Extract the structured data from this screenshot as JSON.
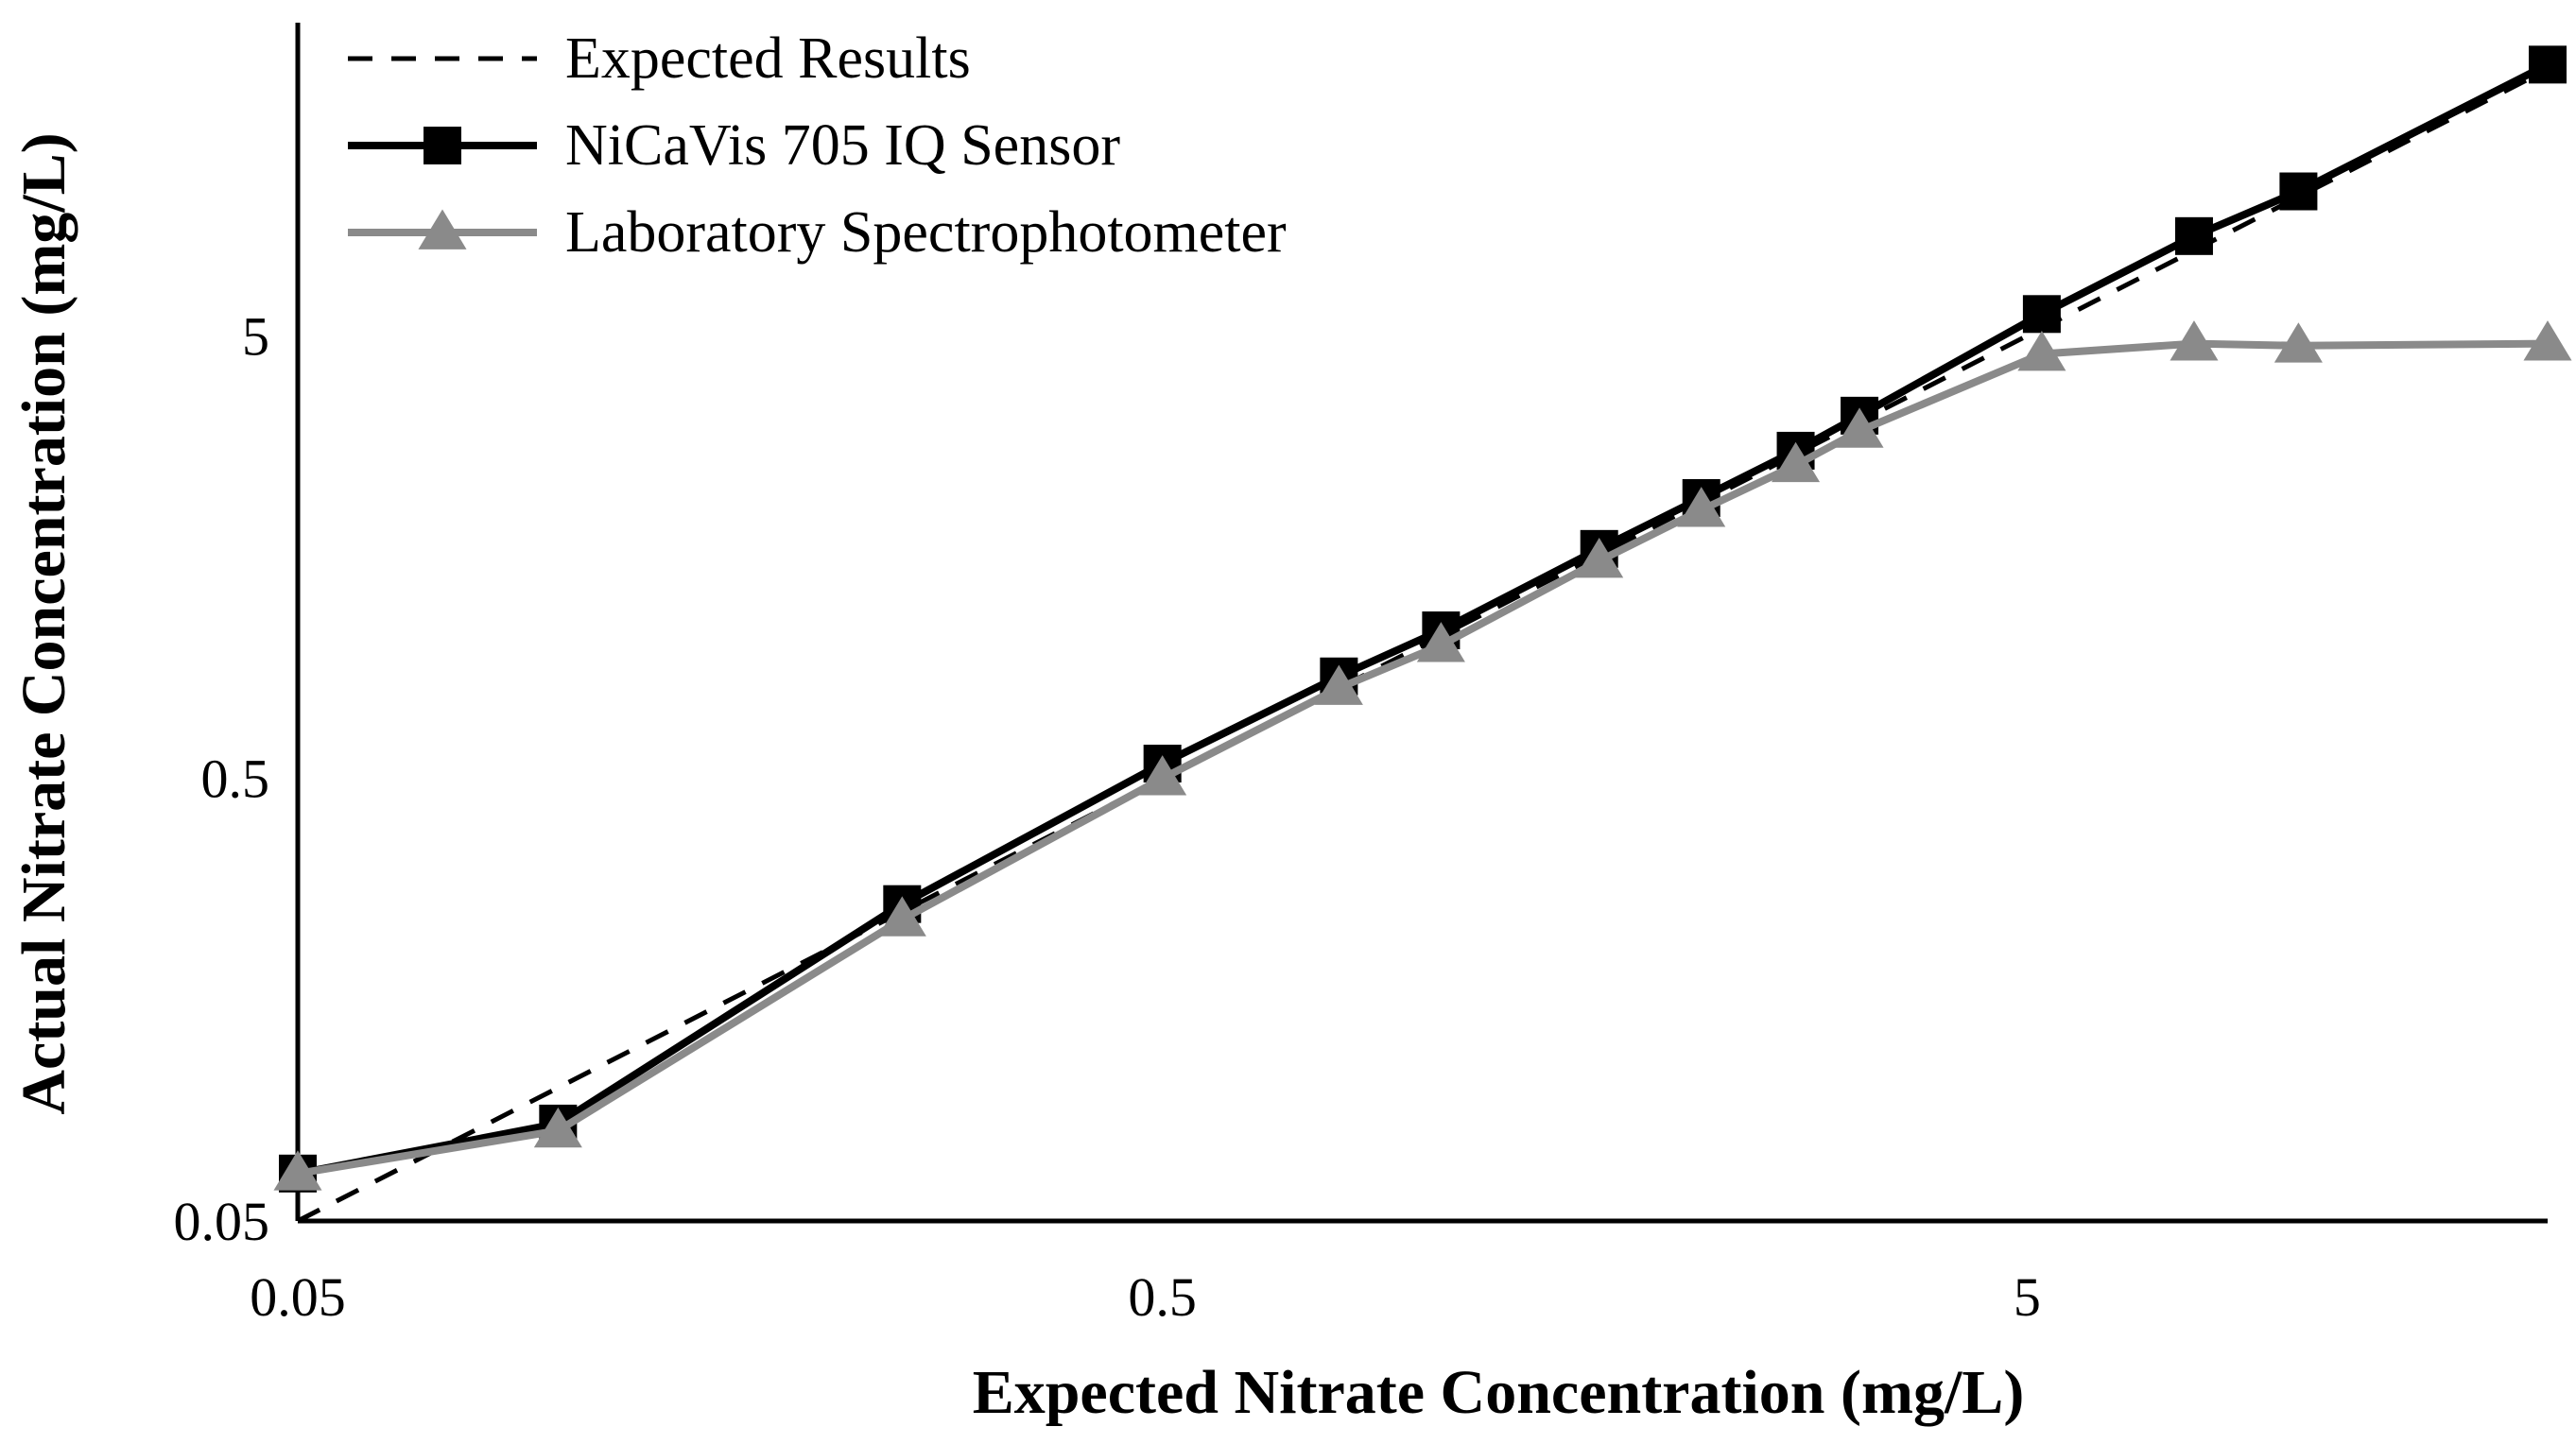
{
  "chart_data": {
    "type": "line",
    "xlabel": "Expected Nitrate Concentration (mg/L)",
    "ylabel": "Actual Nitrate Concentration (mg/L)",
    "xscale": "log",
    "yscale": "log",
    "xlim": [
      0.05,
      20
    ],
    "ylim": [
      0.05,
      25
    ],
    "xticks": [
      0.05,
      0.5,
      5
    ],
    "xtick_labels": [
      "0.05",
      "0.5",
      "5"
    ],
    "yticks": [
      0.05,
      0.5,
      5
    ],
    "ytick_labels": [
      "0.05",
      "0.5",
      "5"
    ],
    "grid": false,
    "legend_position": "top-left",
    "series": [
      {
        "name": "Expected Results",
        "style": "dashed",
        "color": "#000000",
        "marker": "none",
        "x": [
          0.05,
          20
        ],
        "y": [
          0.05,
          20
        ]
      },
      {
        "name": "NiCaVis 705 IQ Sensor",
        "style": "solid",
        "color": "#000000",
        "marker": "square",
        "x": [
          0.05,
          0.1,
          0.25,
          0.5,
          0.8,
          1.05,
          1.6,
          2.1,
          2.7,
          3.2,
          5.2,
          7.8,
          10.3,
          20
        ],
        "y": [
          0.064,
          0.083,
          0.26,
          0.54,
          0.85,
          1.08,
          1.65,
          2.15,
          2.75,
          3.3,
          5.6,
          8.4,
          10.6,
          20.5
        ]
      },
      {
        "name": "Laboratory Spectrophotometer",
        "style": "solid",
        "color": "#8a8a8a",
        "marker": "triangle",
        "x": [
          0.05,
          0.1,
          0.25,
          0.5,
          0.8,
          1.05,
          1.6,
          2.1,
          2.7,
          3.2,
          5.2,
          7.8,
          10.3,
          20
        ],
        "y": [
          0.064,
          0.08,
          0.24,
          0.5,
          0.8,
          1.0,
          1.55,
          2.02,
          2.55,
          3.05,
          4.55,
          4.8,
          4.75,
          4.8
        ]
      }
    ]
  }
}
